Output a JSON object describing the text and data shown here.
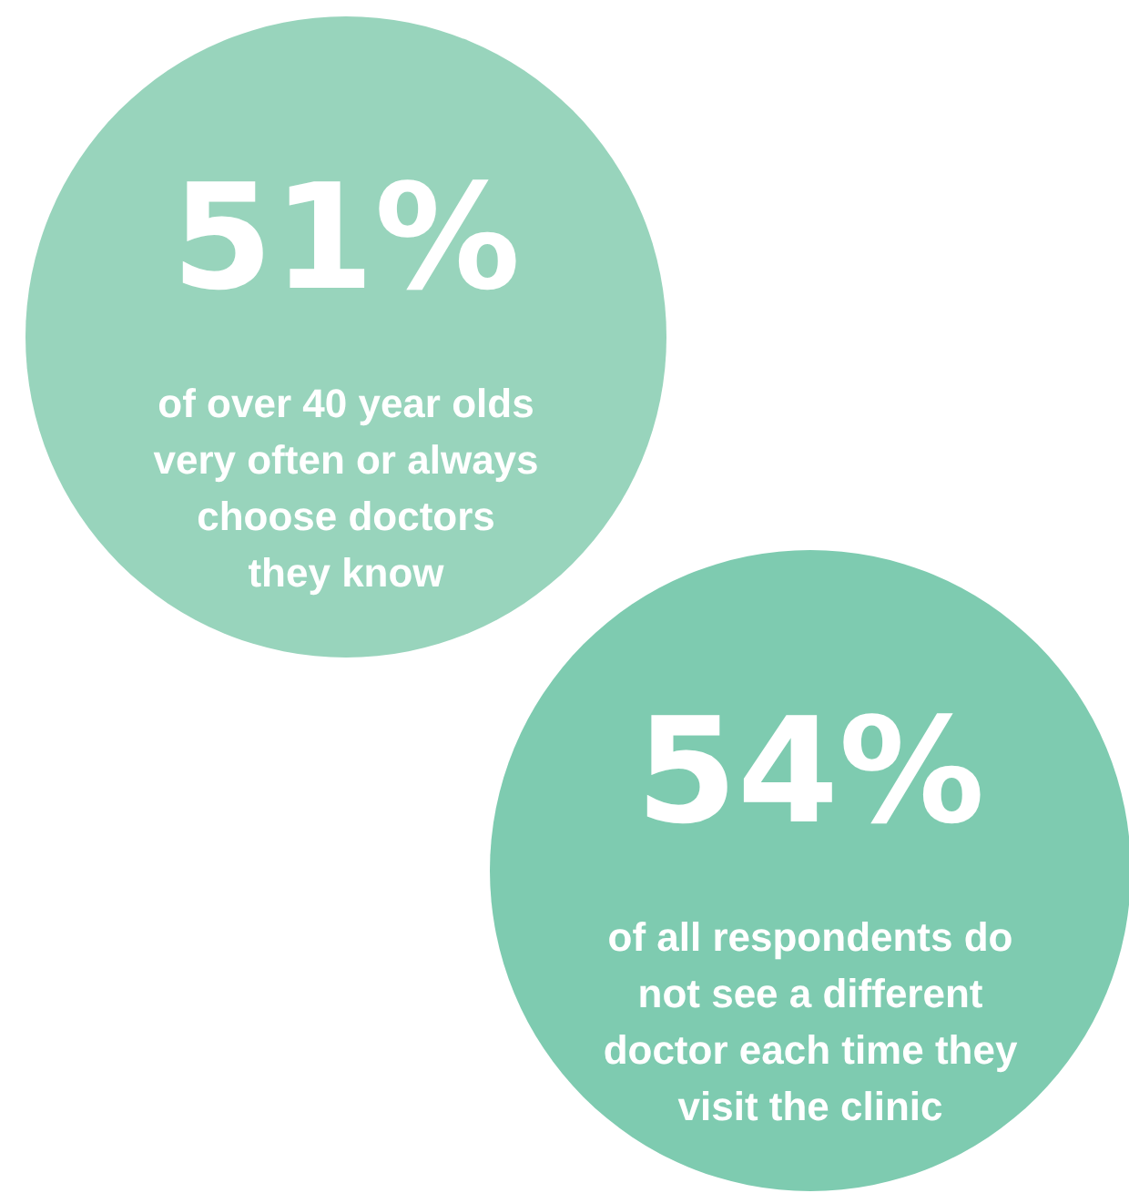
{
  "chart_data": {
    "type": "other",
    "categories": [
      "of over 40 year olds very often or always choose doctors they know",
      "of all respondents do not see a different doctor each time they visit the clinic"
    ],
    "values": [
      51,
      54
    ],
    "value_labels": [
      "51%",
      "54%"
    ],
    "colors": [
      "#98d4bc",
      "#7ecbb0"
    ]
  }
}
